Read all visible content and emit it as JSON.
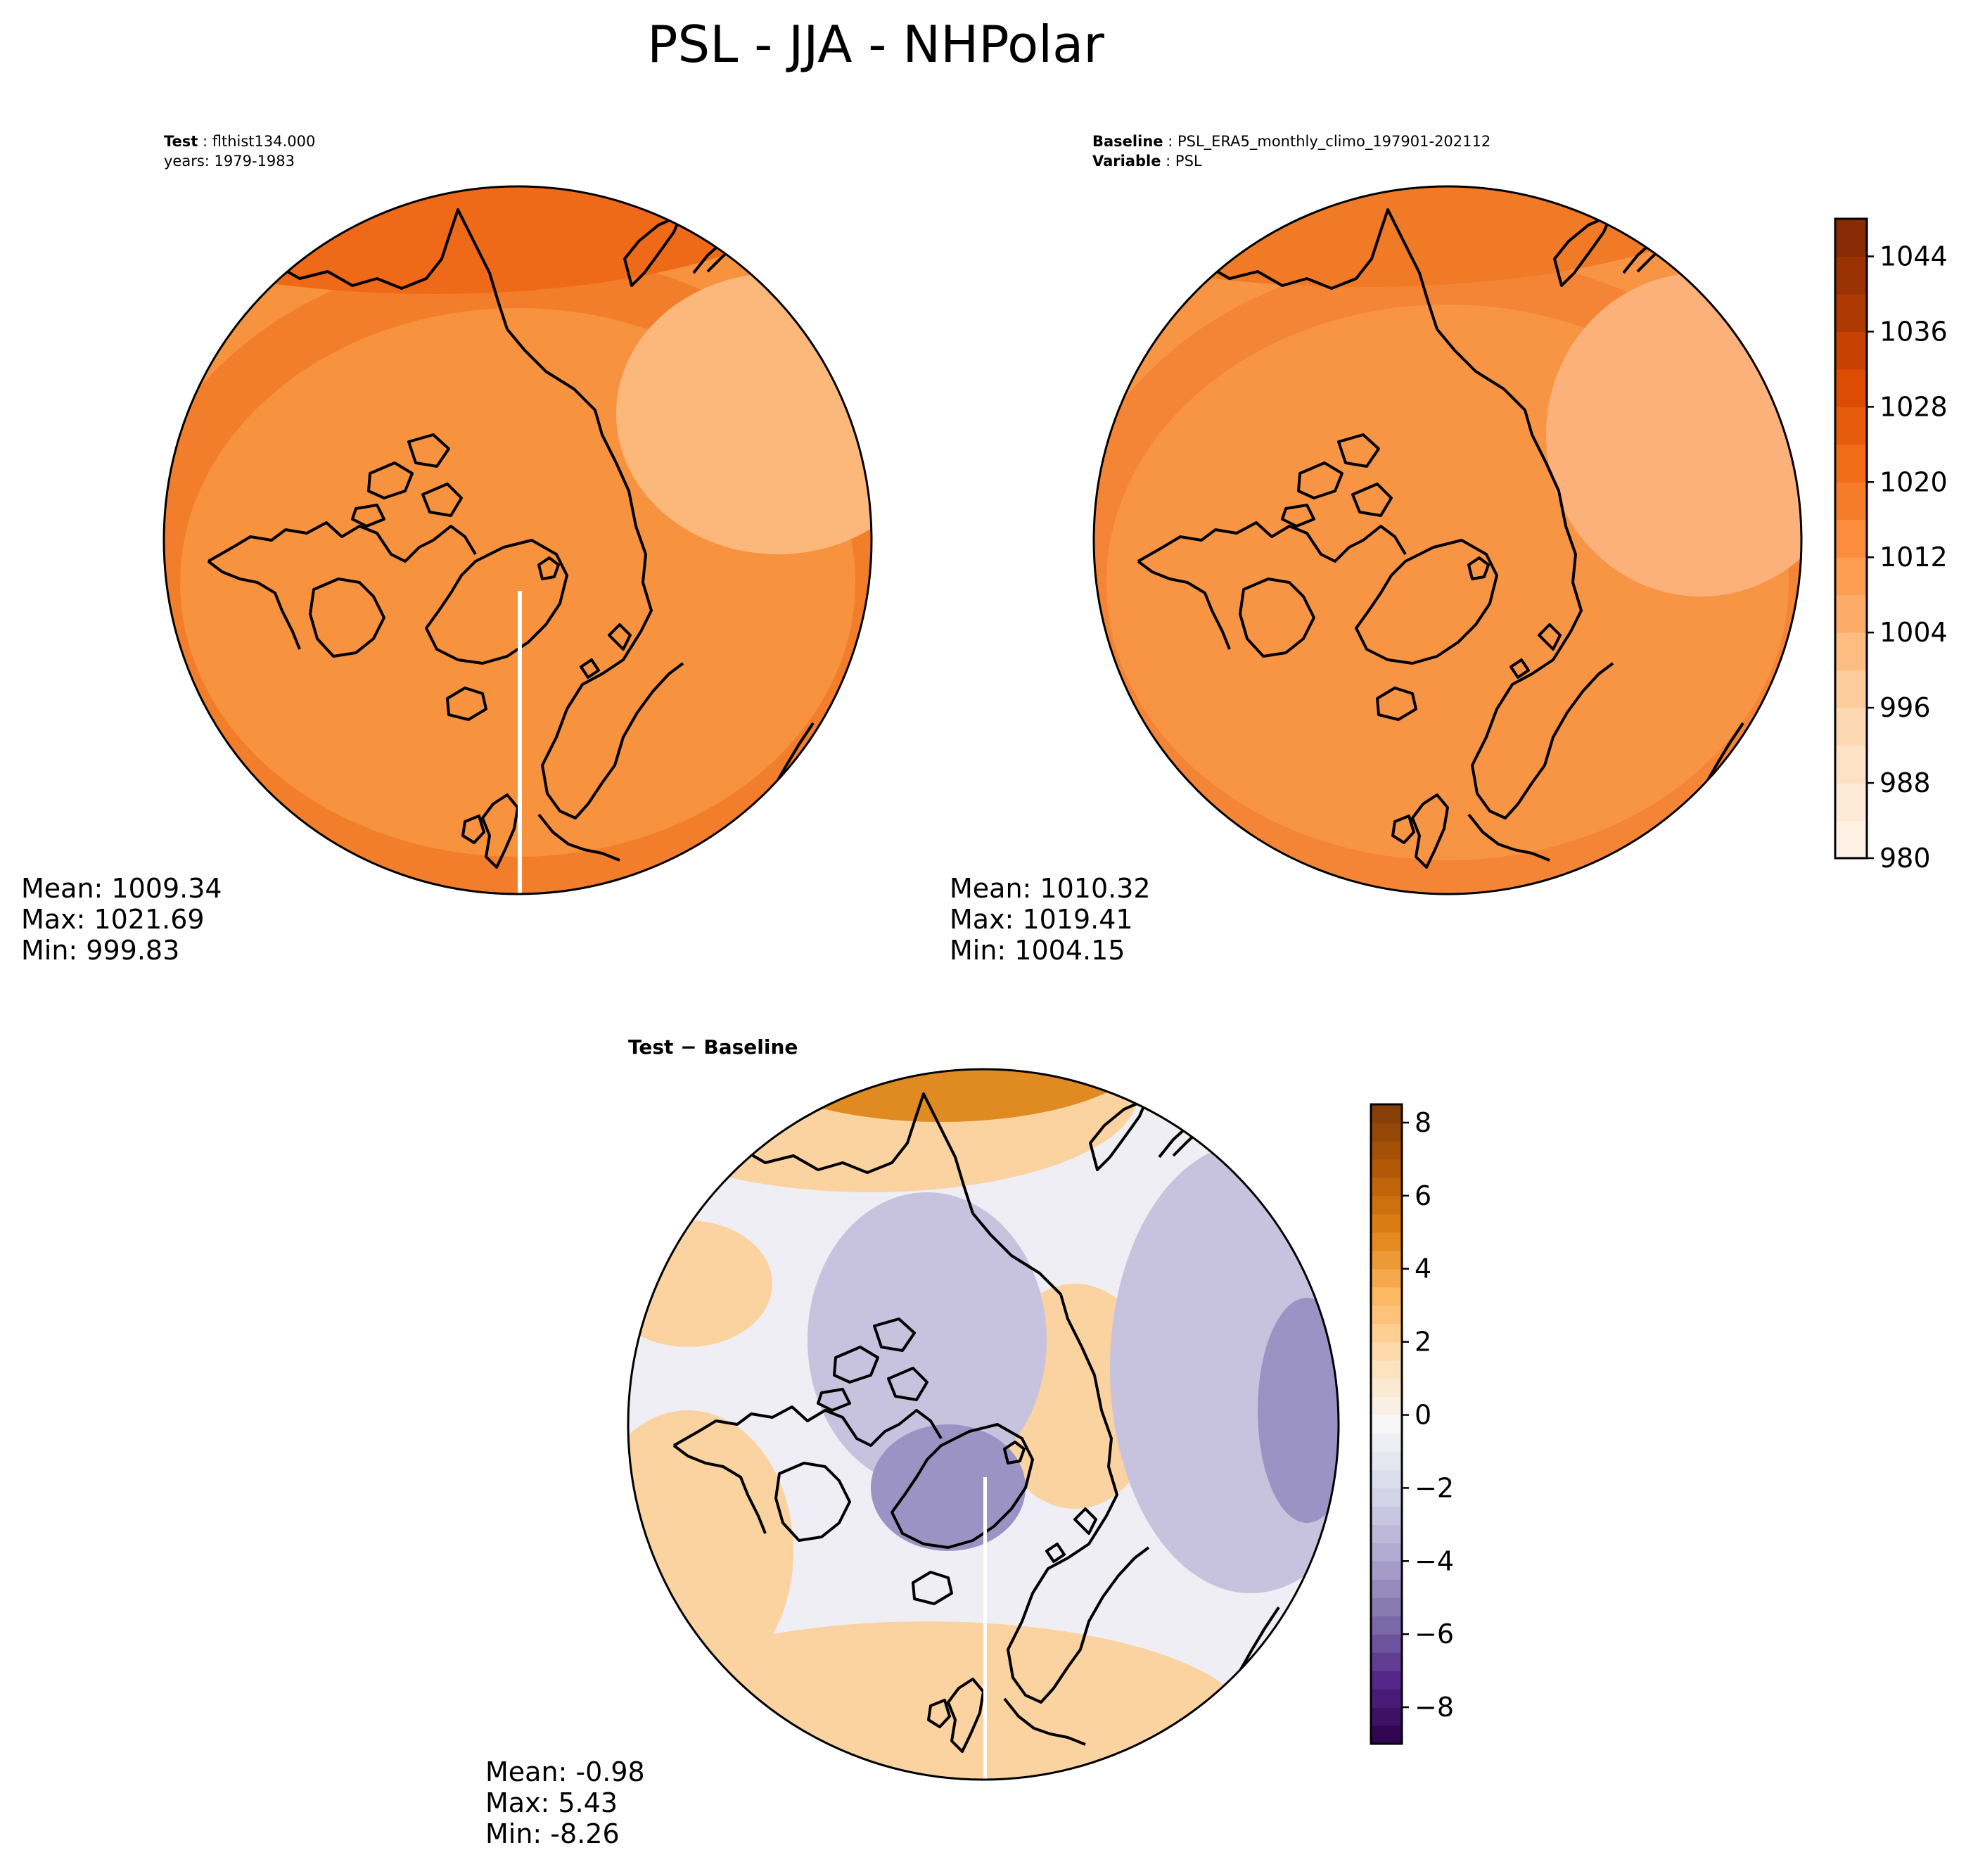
{
  "title": "PSL - JJA - NHPolar",
  "panels": {
    "test": {
      "label_key": "Test",
      "label_value": "flthist134.000",
      "years": "years: 1979-1983",
      "stats": [
        "Mean: 1009.34",
        "Max: 1021.69",
        "Min: 999.83"
      ]
    },
    "baseline": {
      "label_key": "Baseline",
      "label_value": "PSL_ERA5_monthly_climo_197901-202112",
      "var_key": "Variable",
      "var_value": "PSL",
      "stats": [
        "Mean: 1010.32",
        "Max: 1019.41",
        "Min: 1004.15"
      ]
    },
    "diff": {
      "label_a": "Test",
      "label_op": "−",
      "label_b": "Baseline",
      "stats": [
        "Mean: -0.98",
        "Max:  5.43",
        "Min: -8.26"
      ]
    }
  },
  "colorbars": {
    "psl": {
      "min": 980,
      "max": 1048,
      "step": 4,
      "ticks": [
        "1044",
        "1036",
        "1028",
        "1020",
        "1012",
        "1004",
        "996",
        "988",
        "980"
      ],
      "tick_values": [
        1044,
        1036,
        1028,
        1020,
        1012,
        1004,
        996,
        988,
        980
      ],
      "colors": [
        "#fff5eb",
        "#fee6ce",
        "#fdd0a2",
        "#fdae6b",
        "#fd8d3c",
        "#f16913",
        "#d94801",
        "#a63603",
        "#7f2704"
      ]
    },
    "diff": {
      "min": -9,
      "max": 8.5,
      "step": 0.5,
      "ticks": [
        "8",
        "6",
        "4",
        "2",
        "0",
        "−2",
        "−4",
        "−6",
        "−8"
      ],
      "tick_values": [
        8,
        6,
        4,
        2,
        0,
        -2,
        -4,
        -6,
        -8
      ],
      "colors": [
        "#2d004b",
        "#542788",
        "#8073ac",
        "#b2abd2",
        "#d8daeb",
        "#f7f7f7",
        "#fee0b6",
        "#fdb863",
        "#e08214",
        "#b35806",
        "#7f3b08"
      ]
    }
  },
  "map_colors": {
    "test_base": "#f7923f",
    "test_north": "#ef6a18",
    "test_east": "#fcb77a",
    "test_ring": "#f27d2a",
    "base_base": "#f89545",
    "base_north": "#f07a26",
    "base_east": "#fcb07a",
    "base_ring": "#f58536",
    "diff_base": "#eeeef4",
    "diff_warm": "#fbd3a1",
    "diff_hot": "#e08a22",
    "diff_cool": "#c7c3df",
    "diff_cold": "#9c93c5"
  }
}
